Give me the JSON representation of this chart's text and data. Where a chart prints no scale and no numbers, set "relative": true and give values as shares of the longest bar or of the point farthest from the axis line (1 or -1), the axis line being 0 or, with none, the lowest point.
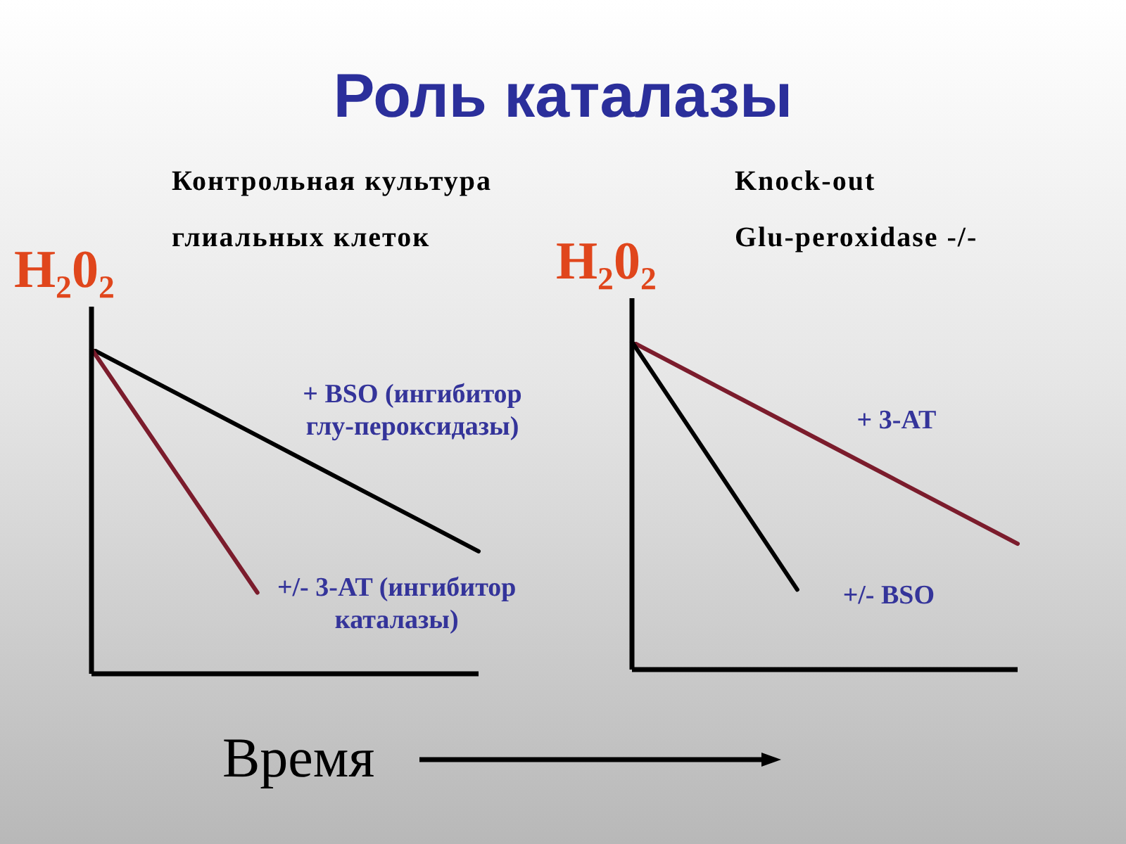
{
  "chart_data": [
    {
      "type": "line",
      "title": "Роль каталазы",
      "subtitle": "Контрольная культура глиальных клеток",
      "ylabel": "H₂0₂",
      "xlabel": "Время",
      "relative": true,
      "categories": [
        null,
        null,
        null,
        null,
        null,
        null,
        null,
        null
      ],
      "series": [
        {
          "name": "+ BSO (ингибитор глу-пероксидазы)",
          "color": "#000000",
          "values": [
            1,
            0.911,
            0.822,
            0.733,
            0.644,
            0.555,
            0.466,
            0.377
          ]
        },
        {
          "name": "+/- 3-AT (ингибитор каталазы)",
          "color": "#7b1c2c",
          "values": [
            1,
            0.75,
            0.5,
            0.25,
            null,
            null,
            null,
            null
          ]
        }
      ]
    },
    {
      "type": "line",
      "subtitle": "Knock-out Glu-peroxidase -/-",
      "ylabel": "H₂0₂",
      "relative": true,
      "categories": [
        null,
        null,
        null,
        null,
        null,
        null,
        null,
        null
      ],
      "series": [
        {
          "name": "+ 3-AT",
          "color": "#7b1c2c",
          "values": [
            1,
            0.912,
            0.824,
            0.736,
            0.648,
            0.56,
            0.472,
            0.384
          ]
        },
        {
          "name": "+/- BSO",
          "color": "#000000",
          "values": [
            1,
            0.748,
            0.496,
            0.244,
            null,
            null,
            null,
            null
          ]
        }
      ]
    }
  ]
}
